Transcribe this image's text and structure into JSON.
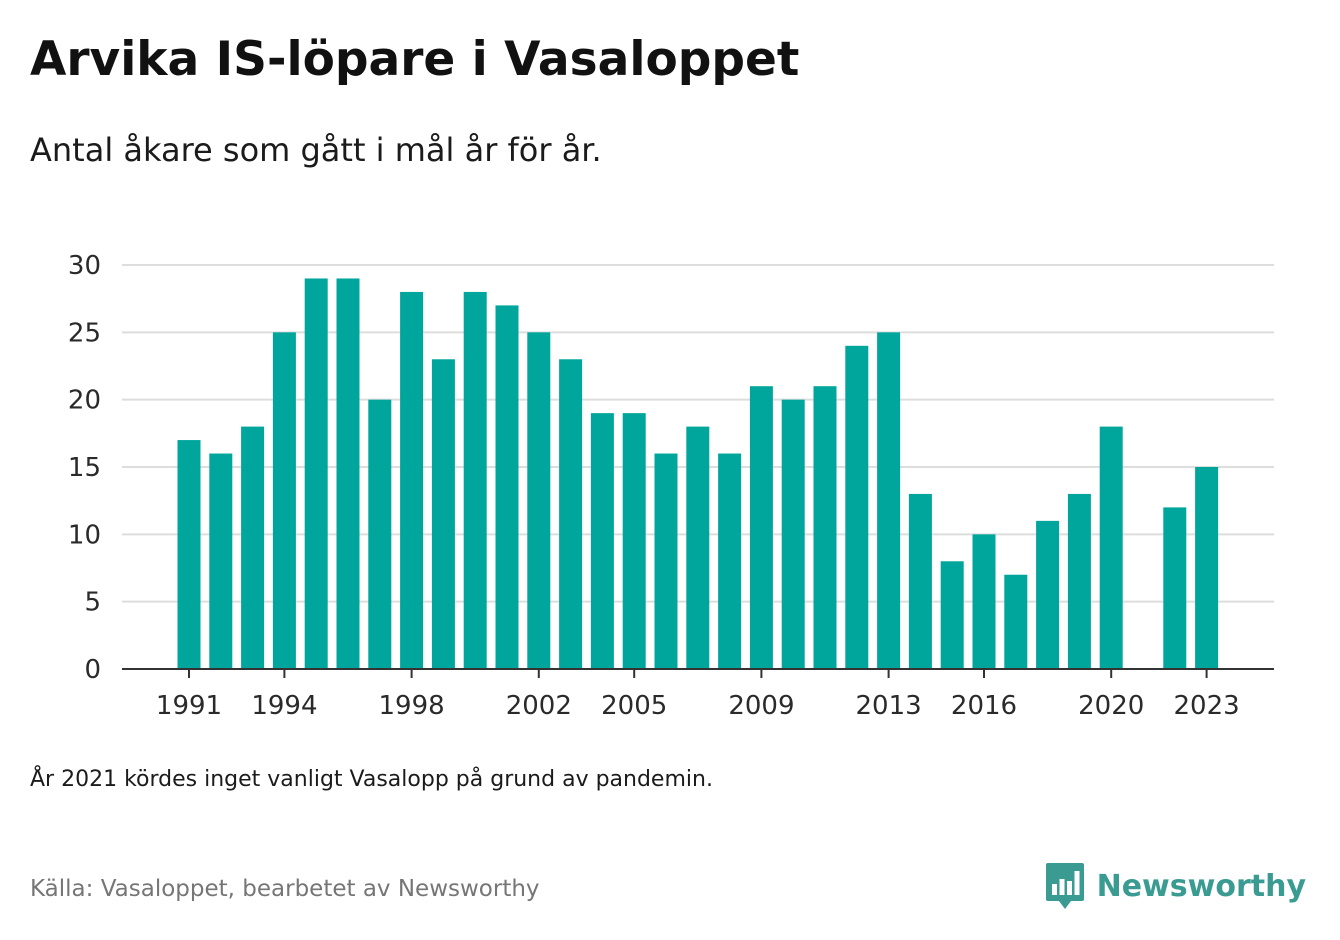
{
  "title": "Arvika IS-löpare i Vasaloppet",
  "subtitle": "Antal åkare som gått i mål år för år.",
  "note": "År 2021 kördes inget vanligt Vasalopp på grund av pandemin.",
  "source": "Källa: Vasaloppet, bearbetet av Newsworthy",
  "brand": {
    "name": "Newsworthy",
    "logo_icon": "bar-chart-speech-bubble-icon",
    "color": "#3a9b93"
  },
  "colors": {
    "bar": "#00a69c",
    "grid": "#dddddd",
    "axis": "#333333"
  },
  "chart_data": {
    "type": "bar",
    "title": "Arvika IS-löpare i Vasaloppet",
    "subtitle": "Antal åkare som gått i mål år för år.",
    "xlabel": "",
    "ylabel": "",
    "ylim": [
      0,
      30
    ],
    "yticks": [
      0,
      5,
      10,
      15,
      20,
      25,
      30
    ],
    "xtick_labels": [
      "1991",
      "1994",
      "1998",
      "2002",
      "2005",
      "2009",
      "2013",
      "2016",
      "2020",
      "2023"
    ],
    "grid": true,
    "legend": "none",
    "categories": [
      1991,
      1992,
      1993,
      1994,
      1995,
      1996,
      1997,
      1998,
      1999,
      2000,
      2001,
      2002,
      2003,
      2004,
      2005,
      2006,
      2007,
      2008,
      2009,
      2010,
      2011,
      2012,
      2013,
      2014,
      2015,
      2016,
      2017,
      2018,
      2019,
      2020,
      2021,
      2022,
      2023
    ],
    "values": [
      17,
      16,
      18,
      25,
      29,
      29,
      20,
      28,
      23,
      28,
      27,
      25,
      23,
      19,
      19,
      16,
      18,
      16,
      21,
      20,
      21,
      24,
      25,
      13,
      8,
      10,
      7,
      11,
      13,
      18,
      null,
      12,
      15
    ]
  }
}
